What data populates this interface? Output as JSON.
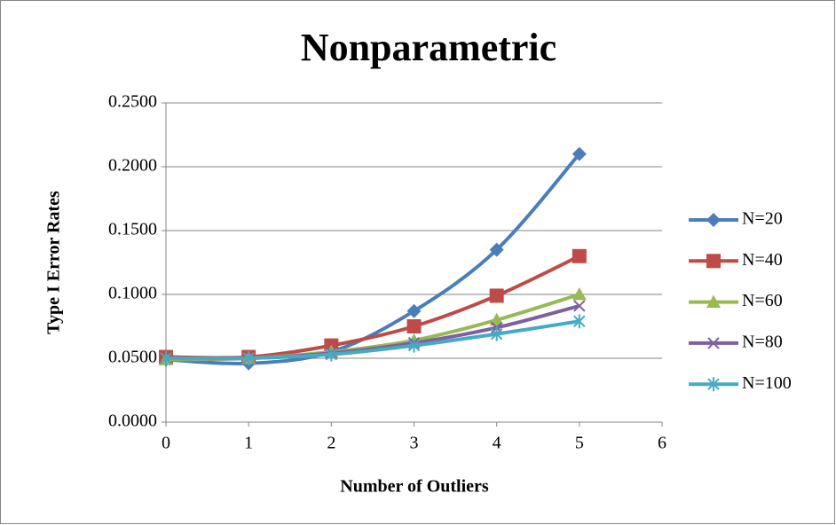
{
  "chart_data": {
    "type": "line",
    "title": "Nonparametric",
    "x_label": "Number of Outliers",
    "y_label": "Type I Error Rates",
    "x": [
      0,
      1,
      2,
      3,
      4,
      5
    ],
    "xlim": [
      0,
      6
    ],
    "xticks": [
      0,
      1,
      2,
      3,
      4,
      5,
      6
    ],
    "ylim": [
      0,
      0.25
    ],
    "yticks": [
      {
        "value": 0,
        "label": "0.0000"
      },
      {
        "value": 0.05,
        "label": "0.0500"
      },
      {
        "value": 0.1,
        "label": "0.1000"
      },
      {
        "value": 0.15,
        "label": "0.1500"
      },
      {
        "value": 0.2,
        "label": "0.2000"
      },
      {
        "value": 0.25,
        "label": "0.2500"
      }
    ],
    "grid": true,
    "smooth": true,
    "legend": "right",
    "series": [
      {
        "name": "N=20",
        "color": "#4a7ebb",
        "marker": "diamond",
        "values": [
          0.049,
          0.046,
          0.055,
          0.087,
          0.135,
          0.21
        ]
      },
      {
        "name": "N=40",
        "color": "#be4b48",
        "marker": "square",
        "values": [
          0.051,
          0.051,
          0.06,
          0.075,
          0.099,
          0.13
        ]
      },
      {
        "name": "N=60",
        "color": "#98b954",
        "marker": "triangle",
        "values": [
          0.049,
          0.05,
          0.055,
          0.064,
          0.08,
          0.1
        ]
      },
      {
        "name": "N=80",
        "color": "#7d60a0",
        "marker": "x",
        "values": [
          0.05,
          0.05,
          0.054,
          0.062,
          0.074,
          0.091
        ]
      },
      {
        "name": "N=100",
        "color": "#46aac5",
        "marker": "star",
        "values": [
          0.05,
          0.05,
          0.053,
          0.06,
          0.069,
          0.079
        ]
      }
    ]
  }
}
